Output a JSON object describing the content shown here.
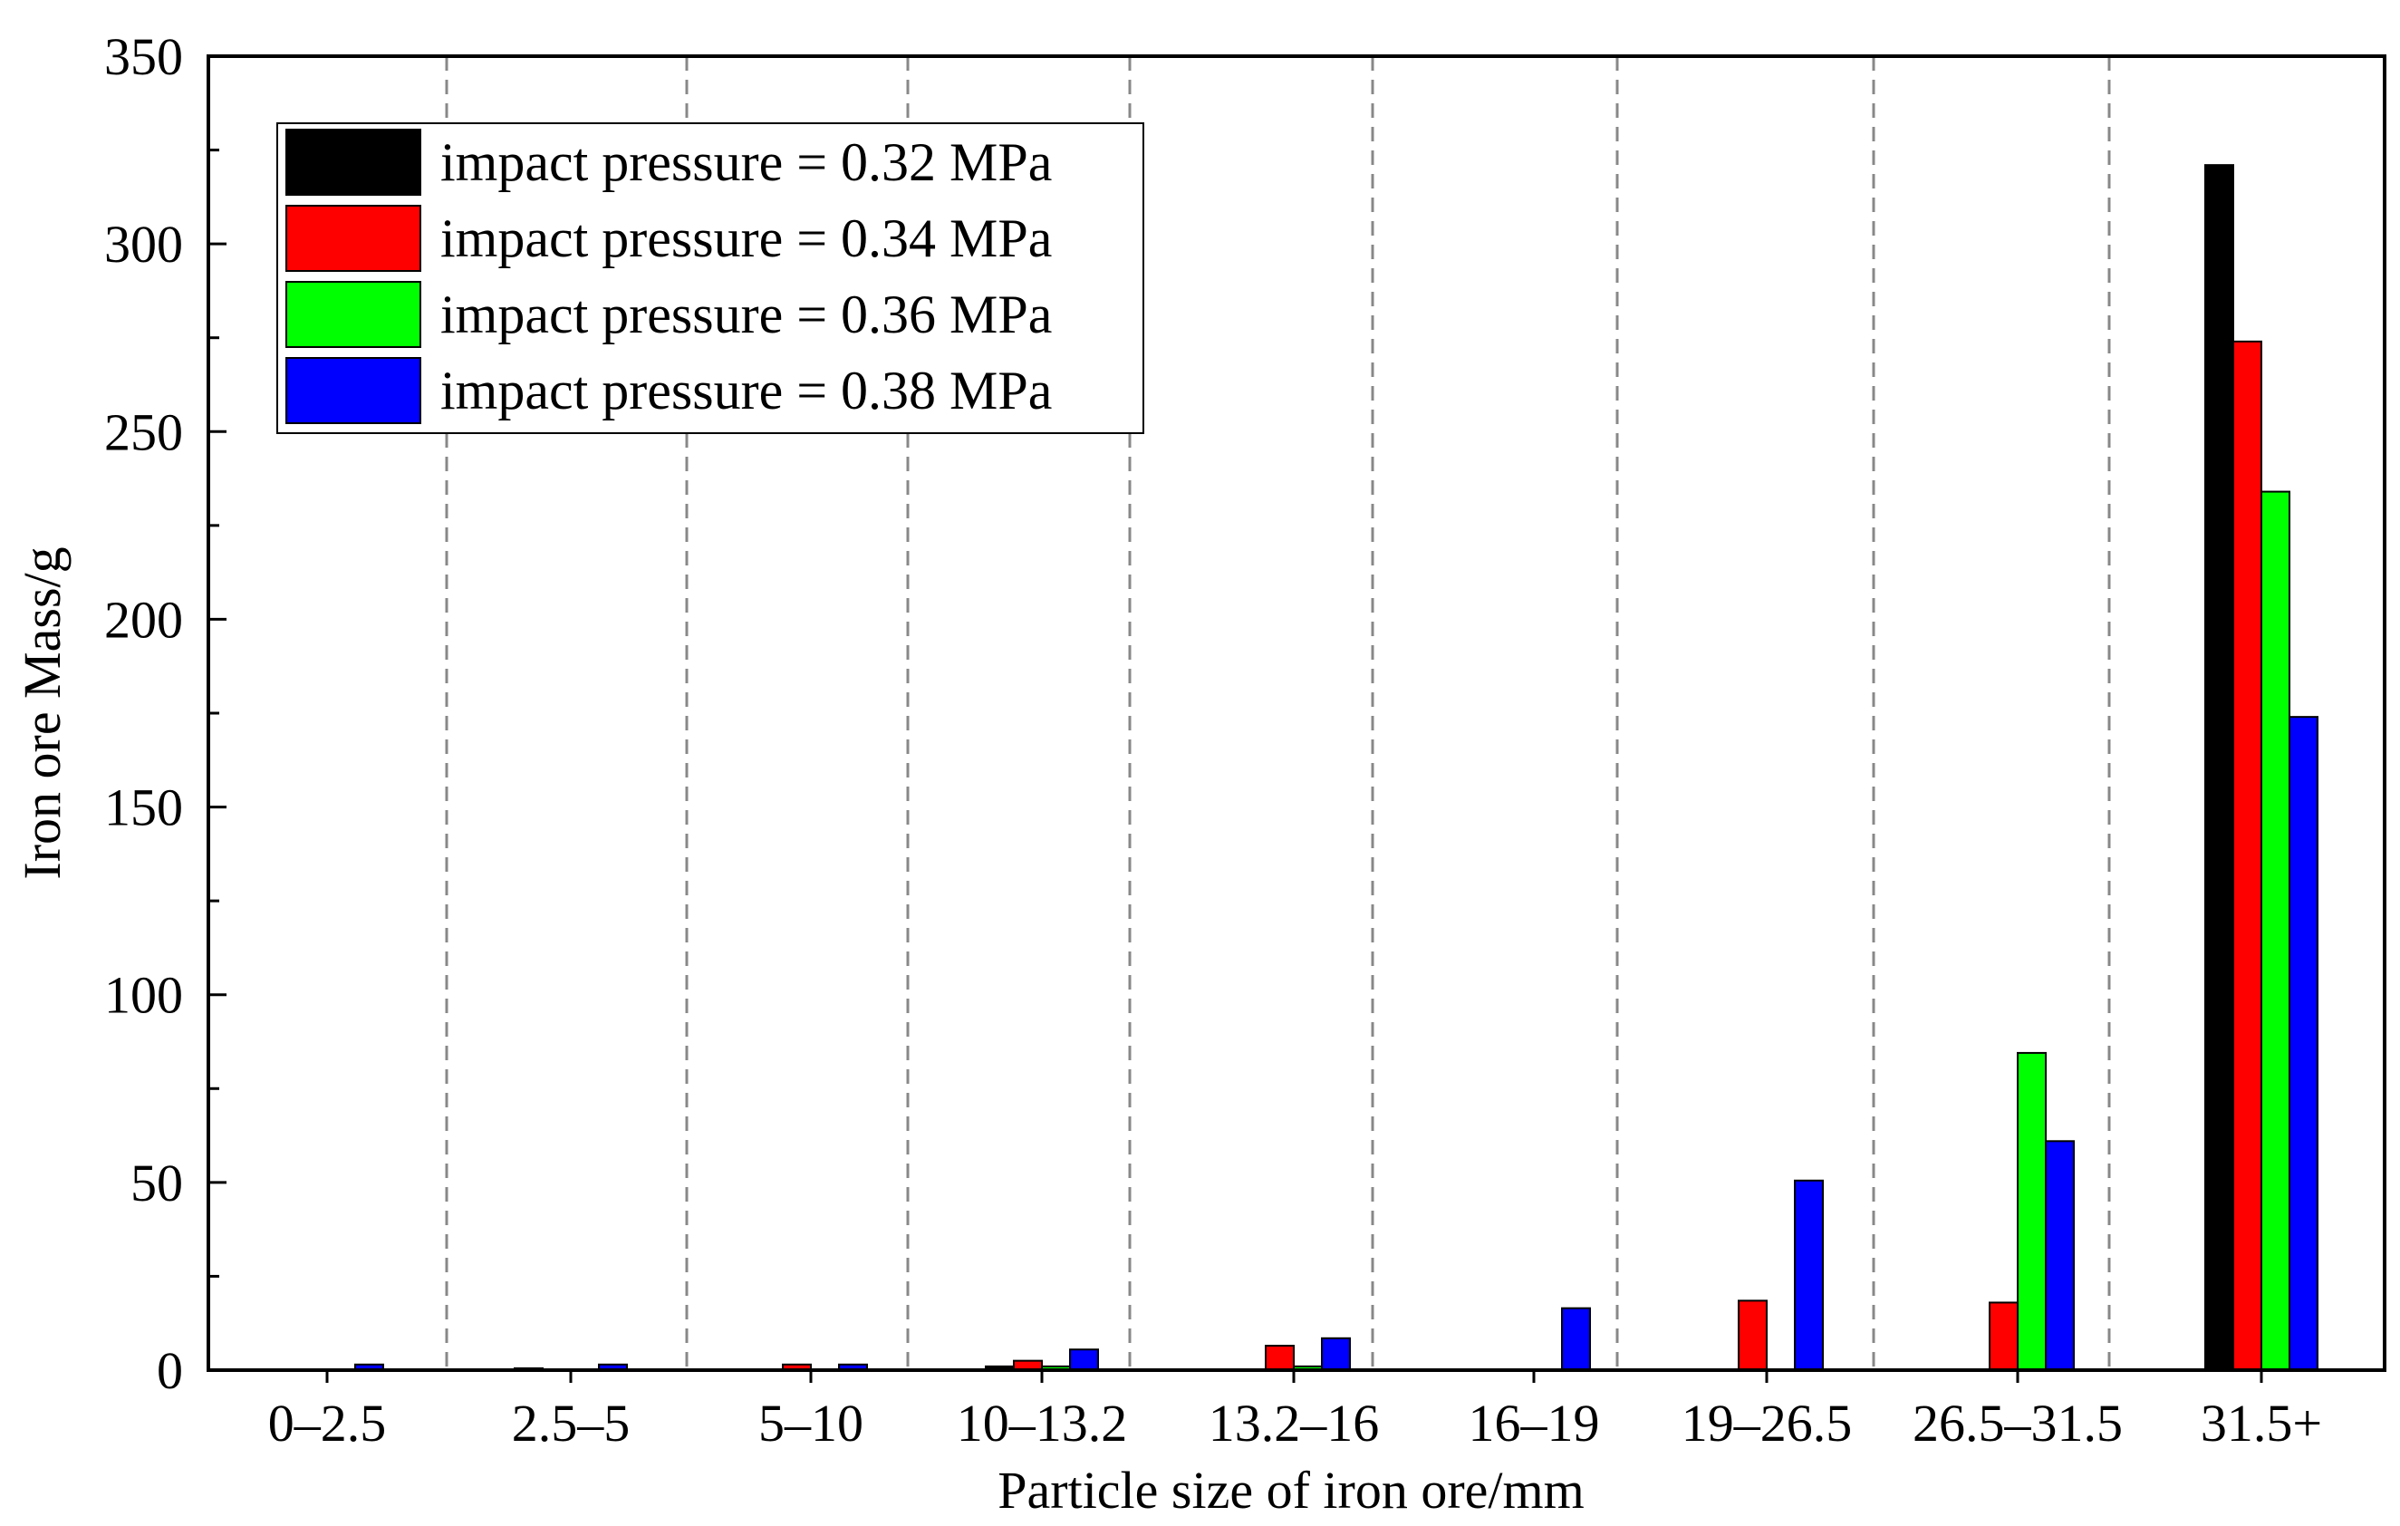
{
  "chart_data": {
    "type": "bar",
    "title": "",
    "xlabel": "Particle size of iron ore/mm",
    "ylabel": "Iron ore Mass/g",
    "ylim": [
      0,
      350
    ],
    "yticks": [
      0,
      50,
      100,
      150,
      200,
      250,
      300,
      350
    ],
    "ytick_labels": [
      "0",
      "50",
      "100",
      "150",
      "200",
      "250",
      "300",
      "350"
    ],
    "categories": [
      "0–2.5",
      "2.5–5",
      "5–10",
      "10–13.2",
      "13.2–16",
      "16–19",
      "19–26.5",
      "26.5–31.5",
      "31.5+"
    ],
    "grid": "vertical dashed separators between categories",
    "legend_position": "top-left",
    "series": [
      {
        "name": "impact pressure = 0.32 MPa",
        "color": "#000000",
        "values": [
          0,
          0.5,
          0,
          1,
          0,
          0,
          0,
          0,
          321
        ]
      },
      {
        "name": "impact pressure = 0.34 MPa",
        "color": "#ff0000",
        "values": [
          0,
          0,
          1.5,
          2.5,
          6.5,
          0,
          18.5,
          18,
          274
        ]
      },
      {
        "name": "impact pressure = 0.36 MPa",
        "color": "#00ff00",
        "values": [
          0,
          0,
          0,
          1,
          1,
          0,
          0,
          84.5,
          234
        ]
      },
      {
        "name": "impact pressure = 0.38 MPa",
        "color": "#0000ff",
        "values": [
          1.5,
          1.5,
          1.5,
          5.5,
          8.5,
          16.5,
          50.5,
          61,
          174
        ]
      }
    ]
  }
}
